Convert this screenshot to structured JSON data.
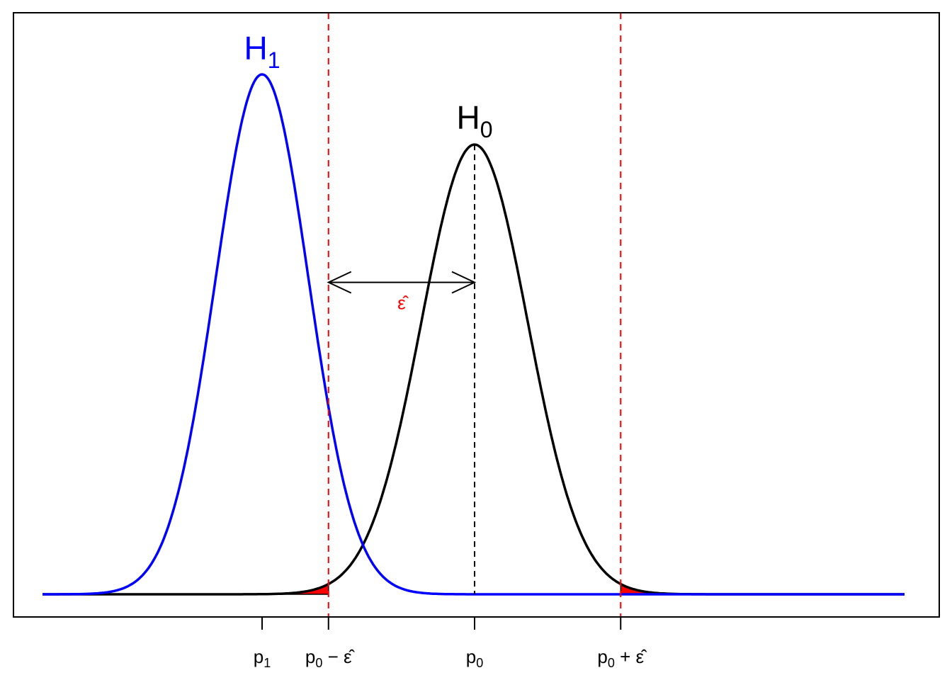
{
  "chart_data": {
    "type": "area",
    "title": "",
    "xlabel": "",
    "ylabel": "",
    "xlim": [
      -2.5,
      4.4
    ],
    "ylim": [
      0,
      1.04
    ],
    "grid": false,
    "series": [
      {
        "name": "H₁",
        "label_main": "H",
        "label_sub": "1",
        "mean": 0,
        "sd": 0.35,
        "peak": 1.0,
        "color": "#0000ff"
      },
      {
        "name": "H₀",
        "label_main": "H",
        "label_sub": "0",
        "mean": 1.6,
        "sd": 0.4,
        "peak": 0.865,
        "color": "#000000"
      }
    ],
    "critical_values": [
      0.5,
      2.7
    ],
    "rejection_fill_color": "#ff0000",
    "critical_line_color": "#ff0000",
    "x_ticks": [
      {
        "x": 0,
        "main": "p",
        "sub": "1",
        "op": "",
        "term": ""
      },
      {
        "x": 0.5,
        "main": "p",
        "sub": "0",
        "op": " − ",
        "term": "ε̂"
      },
      {
        "x": 1.6,
        "main": "p",
        "sub": "0",
        "op": "",
        "term": ""
      },
      {
        "x": 2.7,
        "main": "p",
        "sub": "0",
        "op": " + ",
        "term": "ε̂"
      }
    ],
    "annotations": [
      {
        "type": "double-arrow",
        "from": 0.5,
        "to": 1.6,
        "y": 0.6,
        "label": "ε̂",
        "label_color": "#ff0000"
      }
    ]
  }
}
